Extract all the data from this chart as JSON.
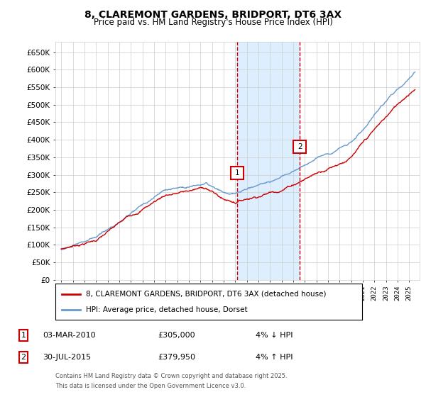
{
  "title": "8, CLAREMONT GARDENS, BRIDPORT, DT6 3AX",
  "subtitle": "Price paid vs. HM Land Registry's House Price Index (HPI)",
  "legend_line1": "8, CLAREMONT GARDENS, BRIDPORT, DT6 3AX (detached house)",
  "legend_line2": "HPI: Average price, detached house, Dorset",
  "annotation1_label": "1",
  "annotation1_date": "03-MAR-2010",
  "annotation1_price": "£305,000",
  "annotation1_hpi": "4% ↓ HPI",
  "annotation2_label": "2",
  "annotation2_date": "30-JUL-2015",
  "annotation2_price": "£379,950",
  "annotation2_hpi": "4% ↑ HPI",
  "footnote_line1": "Contains HM Land Registry data © Crown copyright and database right 2025.",
  "footnote_line2": "This data is licensed under the Open Government Licence v3.0.",
  "sale1_x": 2010.17,
  "sale1_y": 305000,
  "sale2_x": 2015.58,
  "sale2_y": 379950,
  "vline1_x": 2010.17,
  "vline2_x": 2015.58,
  "ylim": [
    0,
    680000
  ],
  "xlim_start": 1994.5,
  "xlim_end": 2025.9,
  "red_color": "#cc0000",
  "blue_color": "#6699cc",
  "shade_color": "#ddeeff",
  "grid_color": "#cccccc",
  "background_color": "#ffffff"
}
